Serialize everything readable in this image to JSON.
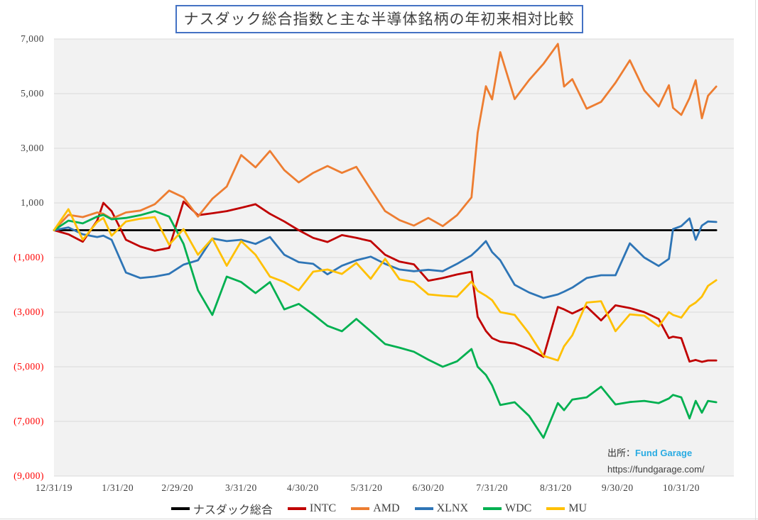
{
  "title": "ナスダック総合指数と主な半導体銘柄の年初来相対比較",
  "source": {
    "prefix": "出所：",
    "name": "Fund Garage",
    "url": "https://fundgarage.com/"
  },
  "chart_data": {
    "type": "line",
    "title": "ナスダック総合指数と主な半導体銘柄の年初来相対比較",
    "grid": "horizontal",
    "legend_position": "bottom",
    "plot_background": "#F2F2F2",
    "gridline_color": "#D9D9D9",
    "ylim": [
      -9000,
      7000
    ],
    "xlim_days": [
      0,
      322
    ],
    "x_unit": "days since 12/31/2019",
    "y_ticks": [
      {
        "label": "7,000",
        "value": 7000,
        "color": "#404040"
      },
      {
        "label": "5,000",
        "value": 5000,
        "color": "#404040"
      },
      {
        "label": "3,000",
        "value": 3000,
        "color": "#404040"
      },
      {
        "label": "1,000",
        "value": 1000,
        "color": "#404040"
      },
      {
        "label": "(1,000)",
        "value": -1000,
        "color": "#FF0000"
      },
      {
        "label": "(3,000)",
        "value": -3000,
        "color": "#FF0000"
      },
      {
        "label": "(5,000)",
        "value": -5000,
        "color": "#FF0000"
      },
      {
        "label": "(7,000)",
        "value": -7000,
        "color": "#FF0000"
      },
      {
        "label": "(9,000)",
        "value": -9000,
        "color": "#FF0000"
      }
    ],
    "x_ticks": [
      {
        "label": "12/31/19",
        "day": 0
      },
      {
        "label": "1/31/20",
        "day": 31
      },
      {
        "label": "2/29/20",
        "day": 60
      },
      {
        "label": "3/31/20",
        "day": 91
      },
      {
        "label": "4/30/20",
        "day": 121
      },
      {
        "label": "5/31/20",
        "day": 152
      },
      {
        "label": "6/30/20",
        "day": 182
      },
      {
        "label": "7/31/20",
        "day": 213
      },
      {
        "label": "8/31/20",
        "day": 244
      },
      {
        "label": "9/30/20",
        "day": 274
      },
      {
        "label": "10/31/20",
        "day": 305
      }
    ],
    "x_days": [
      0,
      7,
      14,
      21,
      24,
      28,
      35,
      42,
      49,
      56,
      63,
      70,
      77,
      84,
      91,
      98,
      105,
      112,
      119,
      126,
      133,
      140,
      147,
      154,
      161,
      168,
      175,
      182,
      189,
      196,
      203,
      206,
      210,
      213,
      217,
      224,
      231,
      238,
      245,
      248,
      252,
      259,
      266,
      273,
      280,
      287,
      294,
      299,
      301,
      305,
      309,
      312,
      315,
      318,
      322
    ],
    "series": [
      {
        "name": "ナスダック総合",
        "color": "#000000",
        "values": [
          0,
          0,
          0,
          0,
          0,
          0,
          0,
          0,
          0,
          0,
          0,
          0,
          0,
          0,
          0,
          0,
          0,
          0,
          0,
          0,
          0,
          0,
          0,
          0,
          0,
          0,
          0,
          0,
          0,
          0,
          0,
          0,
          0,
          0,
          0,
          0,
          0,
          0,
          0,
          0,
          0,
          0,
          0,
          0,
          0,
          0,
          0,
          0,
          0,
          0,
          0,
          0,
          0,
          0,
          0
        ]
      },
      {
        "name": "INTC",
        "color": "#C00000",
        "values": [
          0,
          -150,
          -420,
          350,
          1000,
          700,
          -350,
          -600,
          -750,
          -650,
          1050,
          550,
          620,
          700,
          820,
          950,
          600,
          320,
          0,
          -280,
          -430,
          -180,
          -280,
          -400,
          -900,
          -1150,
          -1250,
          -1850,
          -1750,
          -1620,
          -1520,
          -3170,
          -3690,
          -3950,
          -4080,
          -4150,
          -4350,
          -4640,
          -2810,
          -2900,
          -3050,
          -2800,
          -3300,
          -2750,
          -2850,
          -3000,
          -3250,
          -3950,
          -3900,
          -3950,
          -4810,
          -4750,
          -4820,
          -4770,
          -4770
        ]
      },
      {
        "name": "AMD",
        "color": "#ED7D31",
        "values": [
          0,
          560,
          480,
          650,
          600,
          420,
          650,
          720,
          950,
          1450,
          1200,
          500,
          1150,
          1600,
          2750,
          2300,
          2900,
          2200,
          1750,
          2100,
          2350,
          2100,
          2320,
          1500,
          700,
          370,
          170,
          450,
          150,
          550,
          1200,
          3570,
          5270,
          4790,
          6520,
          4800,
          5500,
          6090,
          6820,
          5260,
          5530,
          4450,
          4700,
          5400,
          6220,
          5120,
          4530,
          5310,
          4480,
          4220,
          4840,
          5490,
          4100,
          4920,
          5260
        ]
      },
      {
        "name": "XLNX",
        "color": "#2E75B6",
        "values": [
          0,
          100,
          -150,
          -250,
          -200,
          -350,
          -1550,
          -1750,
          -1700,
          -1600,
          -1260,
          -1100,
          -300,
          -400,
          -350,
          -500,
          -250,
          -900,
          -1170,
          -1230,
          -1615,
          -1300,
          -1100,
          -970,
          -1230,
          -1440,
          -1500,
          -1450,
          -1500,
          -1230,
          -920,
          -710,
          -400,
          -800,
          -1100,
          -2000,
          -2280,
          -2480,
          -2350,
          -2250,
          -2100,
          -1750,
          -1650,
          -1650,
          -480,
          -1000,
          -1310,
          -1050,
          40,
          150,
          430,
          -350,
          170,
          320,
          300
        ]
      },
      {
        "name": "WDC",
        "color": "#00B050",
        "values": [
          0,
          350,
          250,
          500,
          560,
          400,
          450,
          550,
          700,
          500,
          -500,
          -2200,
          -3100,
          -1700,
          -1900,
          -2300,
          -1900,
          -2900,
          -2700,
          -3080,
          -3500,
          -3700,
          -3250,
          -3700,
          -4170,
          -4300,
          -4450,
          -4740,
          -5000,
          -4800,
          -4350,
          -5000,
          -5300,
          -5680,
          -6400,
          -6300,
          -6800,
          -7600,
          -6330,
          -6590,
          -6200,
          -6120,
          -5730,
          -6380,
          -6290,
          -6250,
          -6330,
          -6160,
          -6030,
          -6120,
          -6890,
          -6250,
          -6680,
          -6250,
          -6300
        ]
      },
      {
        "name": "MU",
        "color": "#FFC000",
        "values": [
          0,
          770,
          -350,
          300,
          450,
          -200,
          320,
          420,
          480,
          -530,
          40,
          -900,
          -300,
          -1300,
          -400,
          -900,
          -1700,
          -1900,
          -2200,
          -1520,
          -1440,
          -1600,
          -1200,
          -1780,
          -1050,
          -1800,
          -1900,
          -2350,
          -2400,
          -2430,
          -1880,
          -2220,
          -2400,
          -2560,
          -3000,
          -3100,
          -3780,
          -4600,
          -4770,
          -4250,
          -3850,
          -2650,
          -2600,
          -3700,
          -3080,
          -3130,
          -3520,
          -3000,
          -3100,
          -3200,
          -2790,
          -2650,
          -2430,
          -2040,
          -1830
        ]
      }
    ]
  }
}
